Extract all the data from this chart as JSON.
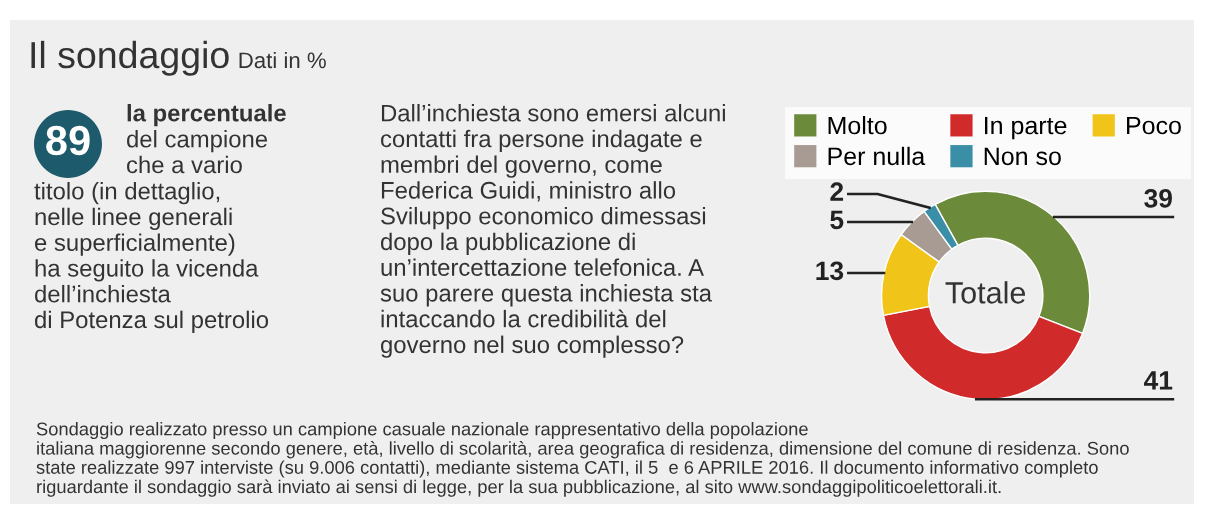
{
  "chart_data": {
    "type": "donut",
    "title": "Il sondaggio",
    "subtitle": "Dati in %",
    "categories": [
      "Molto",
      "In parte",
      "Poco",
      "Per nulla",
      "Non so"
    ],
    "values": [
      39,
      41,
      13,
      5,
      2
    ],
    "colors": [
      "#6b8a3a",
      "#d02a2a",
      "#f0c419",
      "#a89b94",
      "#3a8fa6"
    ],
    "data_labels": true,
    "legend": "top",
    "annotations": [
      "89",
      "la percentuale",
      "del campione\nche a vario",
      "titolo (in dettaglio,\nnelle linee generali\ne superficialmente)\nha seguito la vicenda\ndell’inchiesta\ndi Potenza sul petrolio",
      "Dall’inchiesta sono emersi alcuni\ncontatti fra persone indagate e\nmembri del governo, come\nFederica Guidi, ministro allo\nSviluppo economico dimessasi\ndopo la pubblicazione di\nun’intercettazione telefonica. A\nsuo parere questa inchiesta sta\nintaccando la credibilità del\ngoverno nel suo complesso?",
      "Totale",
      "Sondaggio realizzato presso un campione casuale nazionale rappresentativo della popolazione\nitaliana maggiorenne secondo genere, età, livello di scolarità, area geografica di residenza, dimensione del comune di residenza. Sono\nstate realizzate 997 interviste (su 9.006 contatti), mediante sistema CATI, il 5  e 6 APRILE 2016. Il documento informativo completo\nriguardante il sondaggio sarà inviato ai sensi di legge, per la sua pubblicazione, al sito www.sondaggipoliticoelettorali.it."
    ]
  }
}
